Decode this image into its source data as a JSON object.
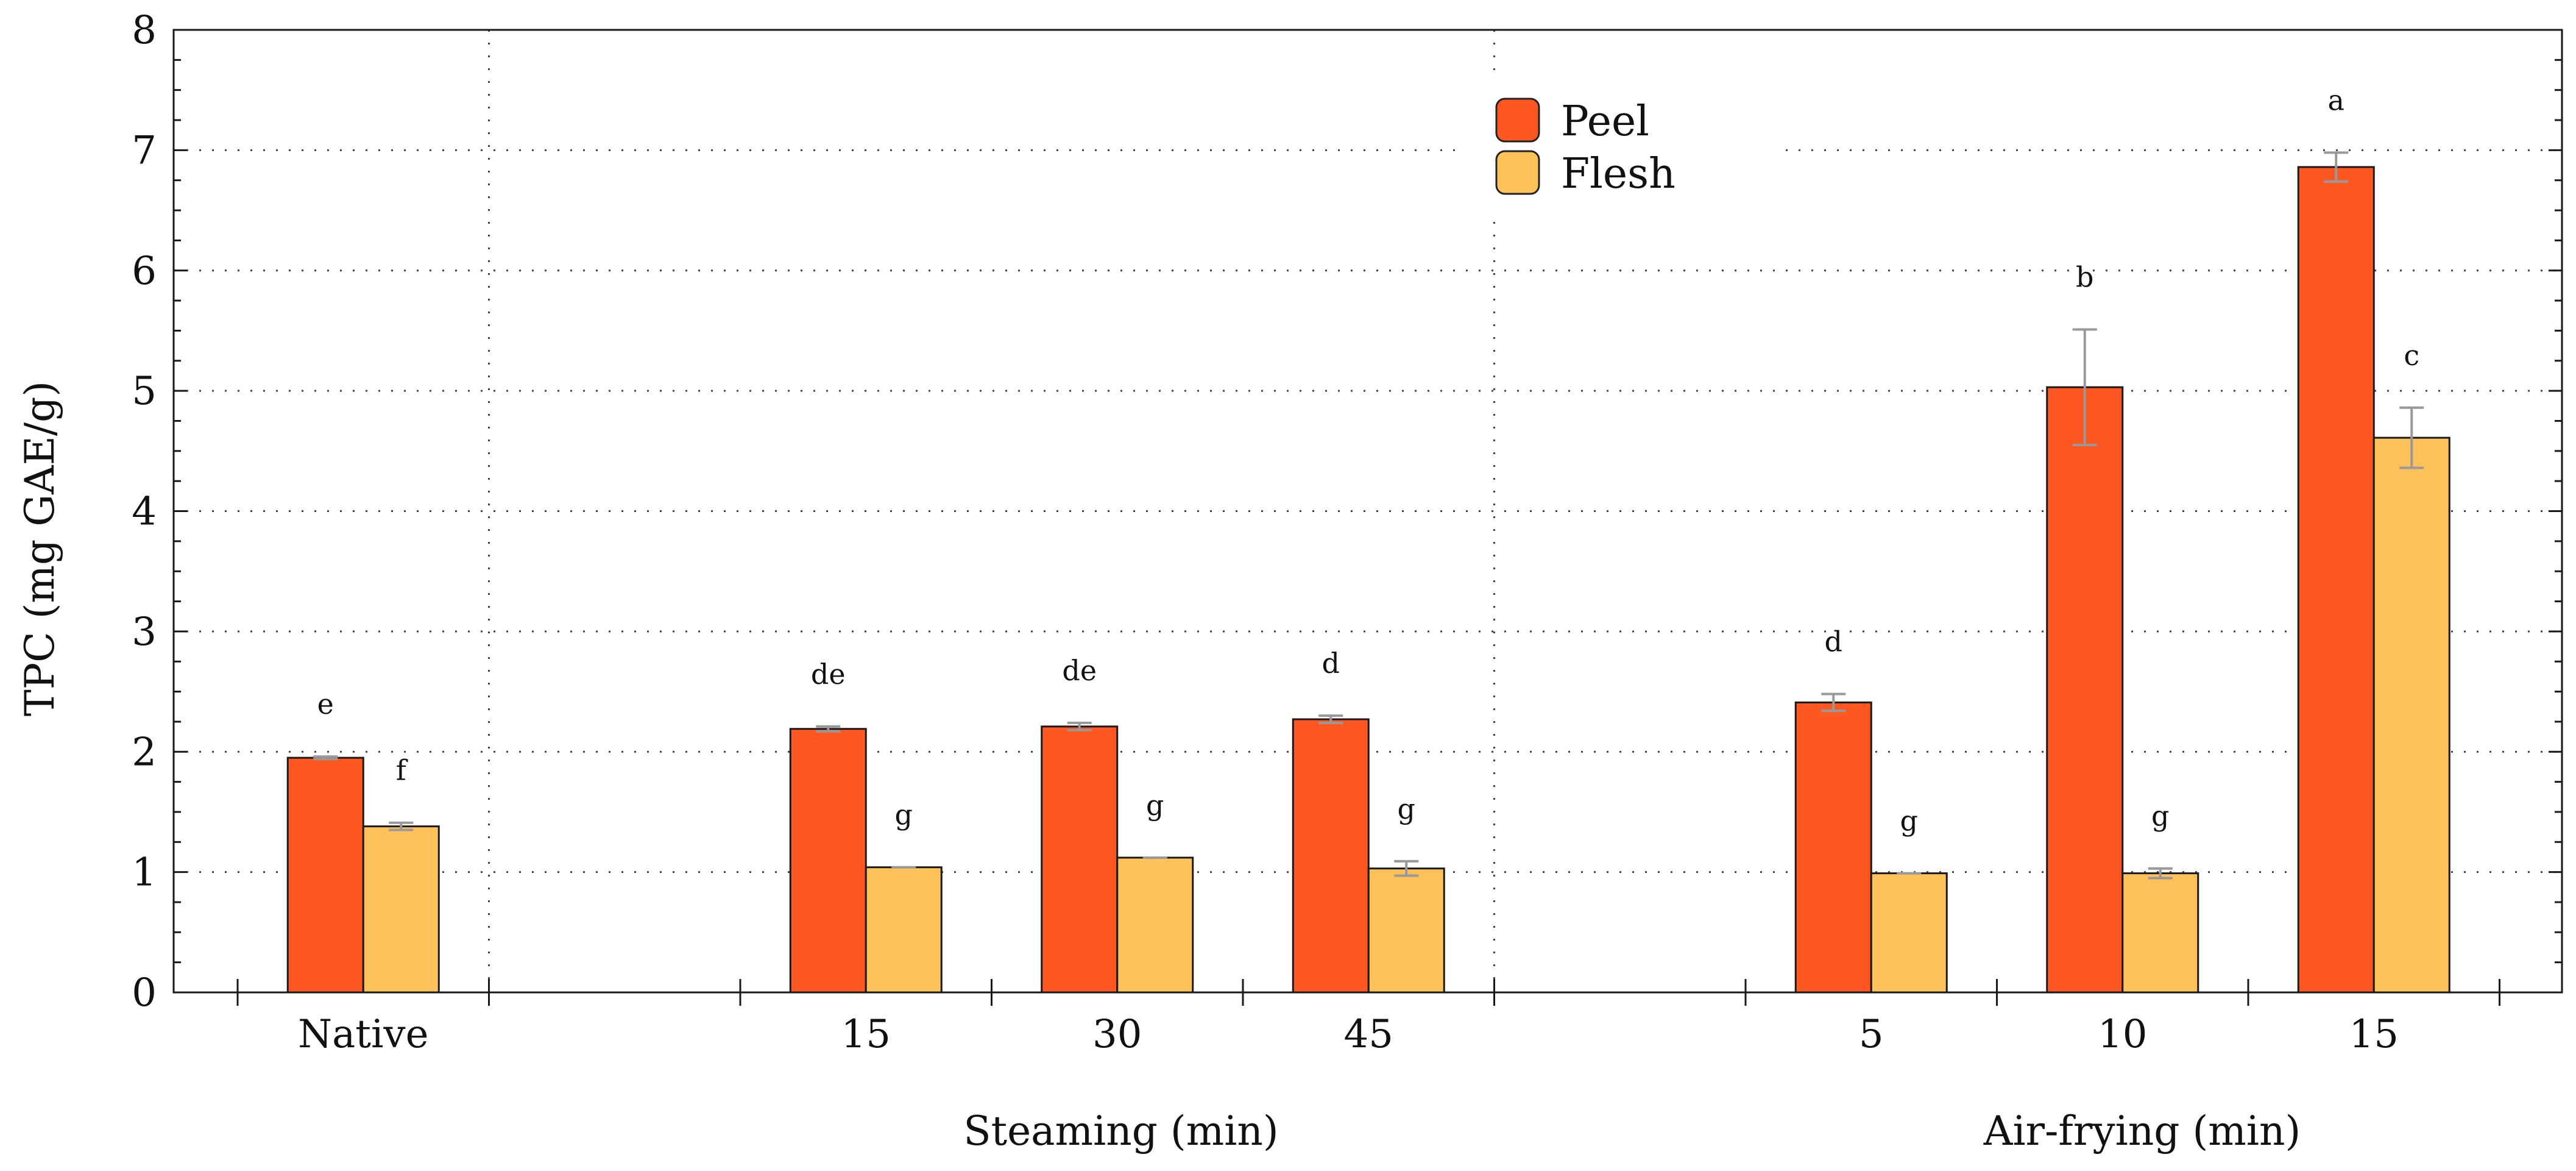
{
  "chart_data": {
    "type": "bar",
    "title": "",
    "ylabel": "TPC (mg GAE/g)",
    "ylim": [
      0,
      8
    ],
    "yticks": [
      "0",
      "1",
      "2",
      "3",
      "4",
      "5",
      "6",
      "7",
      "8"
    ],
    "grid": true,
    "legend_position": "top-center",
    "categories": [
      "Native",
      "15",
      "30",
      "45",
      "5",
      "10",
      "15"
    ],
    "group_labels": [
      "Steaming (min)",
      "Air-frying (min)"
    ],
    "series": [
      {
        "name": "Peel",
        "color": "#ff5722",
        "values": [
          1.95,
          2.19,
          2.21,
          2.27,
          2.41,
          5.03,
          6.86
        ],
        "errors": [
          0.01,
          0.02,
          0.03,
          0.03,
          0.07,
          0.48,
          0.12
        ],
        "letters": [
          "e",
          "de",
          "de",
          "d",
          "d",
          "b",
          "a"
        ]
      },
      {
        "name": "Flesh",
        "color": "#ffc15a",
        "values": [
          1.38,
          1.04,
          1.12,
          1.03,
          0.99,
          0.99,
          4.61
        ],
        "errors": [
          0.03,
          0.0,
          0.0,
          0.06,
          0.0,
          0.04,
          0.25
        ],
        "letters": [
          "f",
          "g",
          "g",
          "g",
          "g",
          "g",
          "c"
        ]
      }
    ]
  }
}
